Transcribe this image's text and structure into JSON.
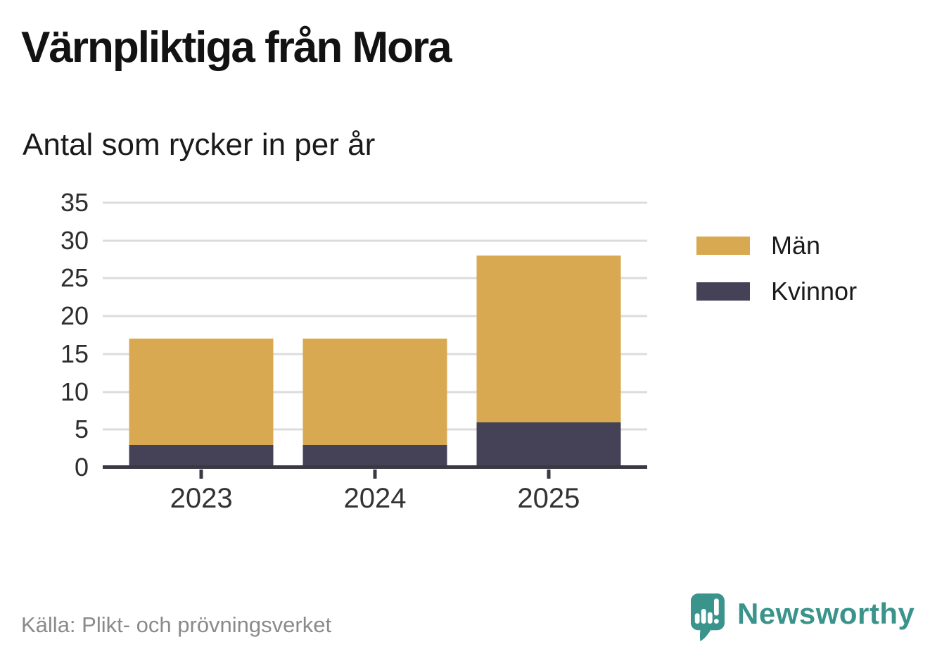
{
  "header": {
    "title": "Värnpliktiga från Mora",
    "subtitle": "Antal som rycker in per år"
  },
  "chart_data": {
    "type": "bar",
    "stacked": true,
    "title": "Värnpliktiga från Mora",
    "subtitle": "Antal som rycker in per år",
    "categories": [
      "2023",
      "2024",
      "2025"
    ],
    "series": [
      {
        "name": "Män",
        "color": "#D9A952",
        "values": [
          14,
          14,
          22
        ]
      },
      {
        "name": "Kvinnor",
        "color": "#454257",
        "values": [
          3,
          3,
          6
        ]
      }
    ],
    "stack_bottom_to_top": [
      "Kvinnor",
      "Män"
    ],
    "totals": [
      17,
      17,
      28
    ],
    "xlabel": "",
    "ylabel": "",
    "y_ticks": [
      0,
      5,
      10,
      15,
      20,
      25,
      30,
      35
    ],
    "ylim": [
      0,
      35
    ],
    "grid": true,
    "legend_position": "right"
  },
  "footer": {
    "source": "Källa: Plikt- och prövningsverket",
    "brand_name": "Newsworthy"
  },
  "colors": {
    "men": "#D9A952",
    "women": "#454257",
    "grid": "#DCDCDC",
    "axis": "#3A3943",
    "text": "#1A1A1A",
    "source_text": "#8A8A8A",
    "brand": "#3A948C"
  }
}
